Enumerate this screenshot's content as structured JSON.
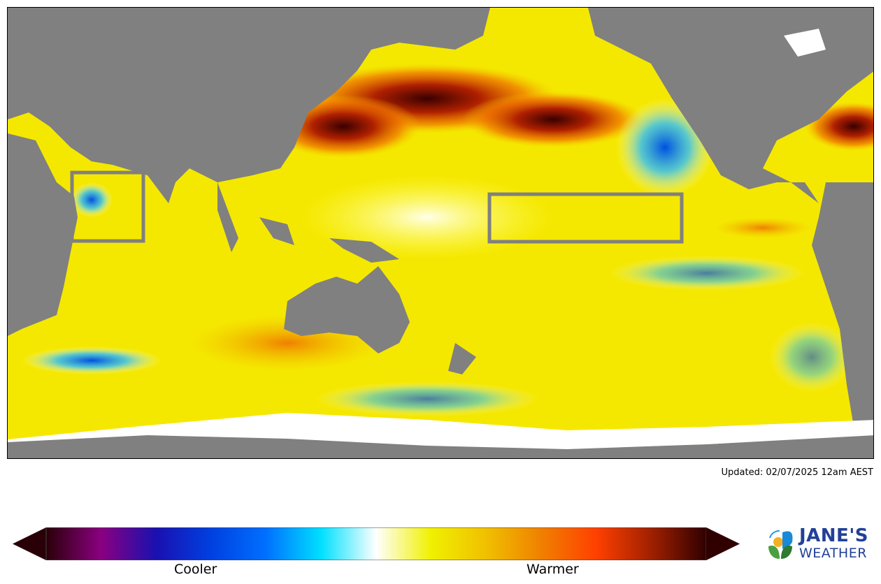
{
  "map": {
    "type": "sea surface temperature anomaly map",
    "land_color": "#808080",
    "ice_color": "#ffffff",
    "highlight_box_color": "#808080",
    "highlight_boxes": [
      "western Indian Ocean / Arabian Sea",
      "central equatorial Pacific"
    ]
  },
  "updated_text": "Updated: 02/07/2025 12am AEST",
  "colorbar": {
    "low_label": "Cooler",
    "high_label": "Warmer",
    "colors": [
      "#2a0008",
      "#8a0080",
      "#1a10b0",
      "#0040e0",
      "#0070ff",
      "#00e0ff",
      "#ffffff",
      "#f0f000",
      "#f0c000",
      "#f08000",
      "#ff4000",
      "#a02000",
      "#300000"
    ]
  },
  "logo": {
    "line1": "JANE'S",
    "line2": "WEATHER",
    "color": "#22409a"
  }
}
